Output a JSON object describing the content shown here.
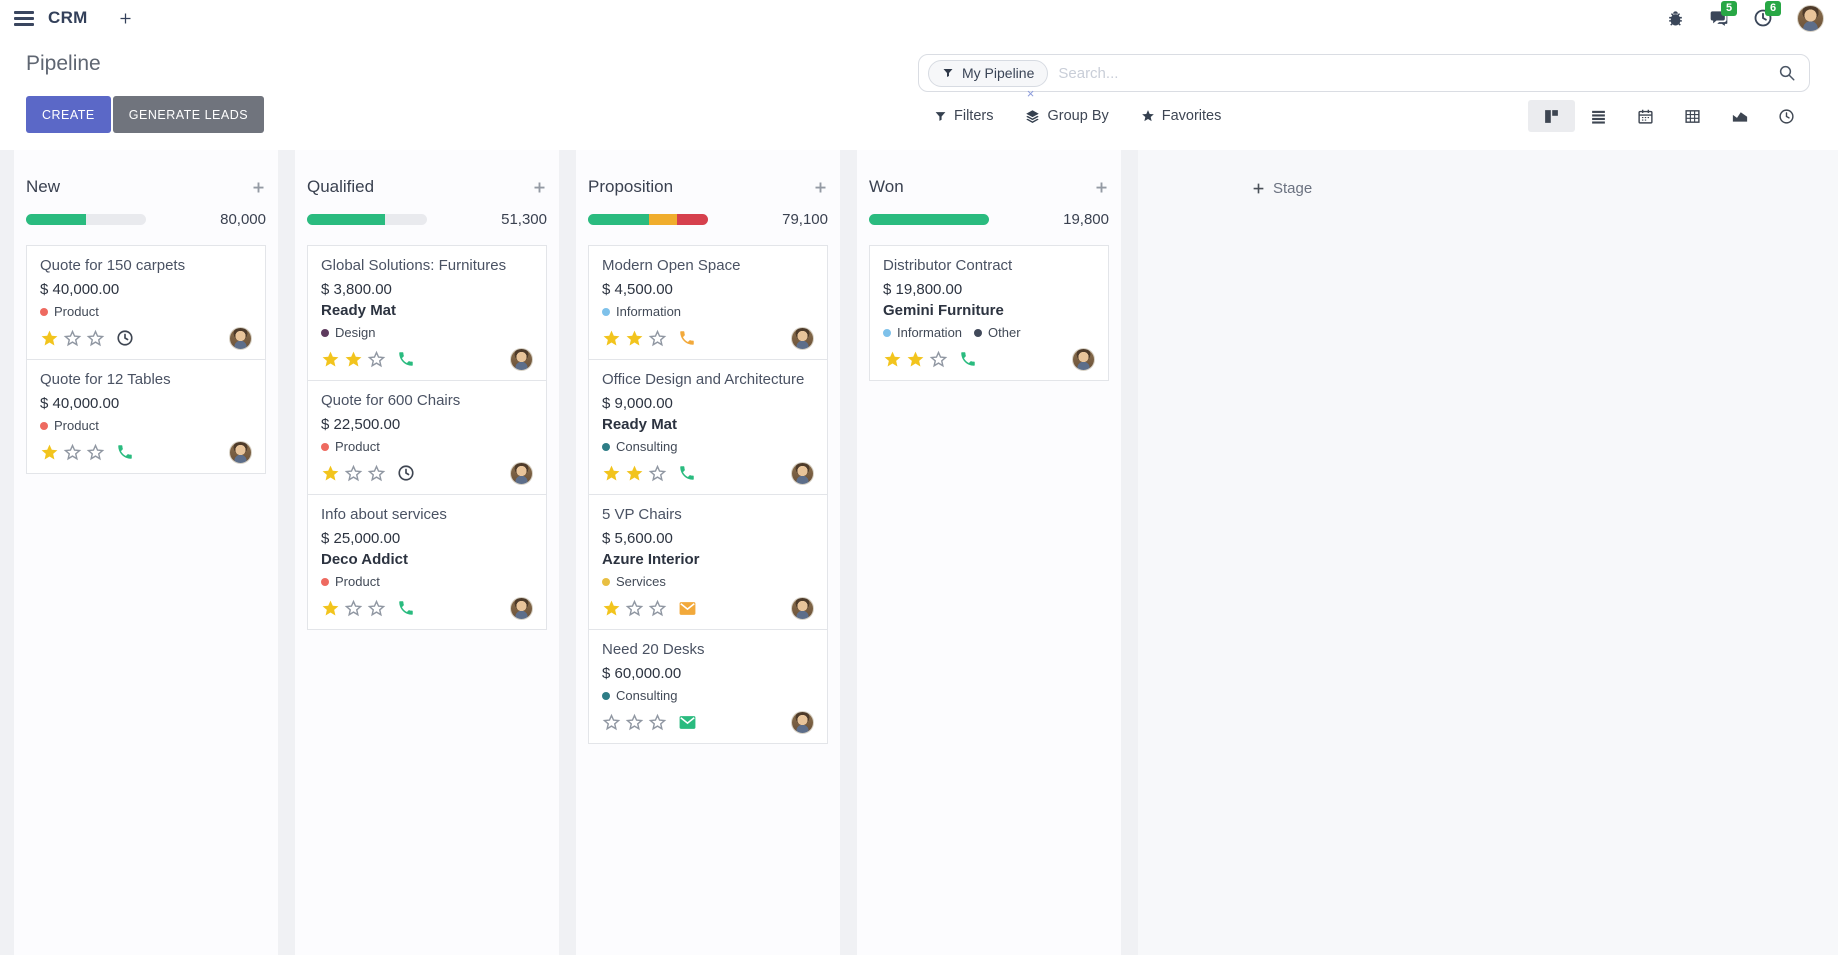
{
  "navbar": {
    "app": "CRM",
    "messages_badge": "5",
    "activities_badge": "6"
  },
  "control_panel": {
    "title": "Pipeline",
    "create": "CREATE",
    "generate_leads": "GENERATE LEADS",
    "search": {
      "facet_label": "My Pipeline",
      "remove": "×",
      "placeholder": "Search..."
    },
    "toolbar": {
      "filters": "Filters",
      "group_by": "Group By",
      "favorites": "Favorites"
    }
  },
  "kanban": {
    "add_stage": "Stage",
    "columns": [
      {
        "name": "New",
        "total": "80,000",
        "progress": [
          {
            "color": "#2abb7f",
            "pct": 50
          }
        ],
        "cards": [
          {
            "title": "Quote for 150 carpets",
            "amount": "$ 40,000.00",
            "tags": [
              {
                "label": "Product",
                "color": "#ee6a60"
              }
            ],
            "stars": 1,
            "activity": {
              "icon": "clock",
              "color": "#3f4652"
            }
          },
          {
            "title": "Quote for 12 Tables",
            "amount": "$ 40,000.00",
            "tags": [
              {
                "label": "Product",
                "color": "#ee6a60"
              }
            ],
            "stars": 1,
            "activity": {
              "icon": "phone",
              "color": "#2abb7f"
            }
          }
        ]
      },
      {
        "name": "Qualified",
        "total": "51,300",
        "progress": [
          {
            "color": "#2abb7f",
            "pct": 65
          }
        ],
        "cards": [
          {
            "title": "Global Solutions: Furnitures",
            "amount": "$ 3,800.00",
            "company": "Ready Mat",
            "tags": [
              {
                "label": "Design",
                "color": "#5e3b5e"
              }
            ],
            "stars": 2,
            "activity": {
              "icon": "phone",
              "color": "#2abb7f"
            }
          },
          {
            "title": "Quote for 600 Chairs",
            "amount": "$ 22,500.00",
            "tags": [
              {
                "label": "Product",
                "color": "#ee6a60"
              }
            ],
            "stars": 1,
            "activity": {
              "icon": "clock",
              "color": "#3f4652"
            }
          },
          {
            "title": "Info about services",
            "amount": "$ 25,000.00",
            "company": "Deco Addict",
            "tags": [
              {
                "label": "Product",
                "color": "#ee6a60"
              }
            ],
            "stars": 1,
            "activity": {
              "icon": "phone",
              "color": "#2abb7f"
            }
          }
        ]
      },
      {
        "name": "Proposition",
        "total": "79,100",
        "progress": [
          {
            "color": "#2abb7f",
            "pct": 51
          },
          {
            "color": "#f0ad2d",
            "pct": 23
          },
          {
            "color": "#d6404d",
            "pct": 26
          }
        ],
        "cards": [
          {
            "title": "Modern Open Space",
            "amount": "$ 4,500.00",
            "tags": [
              {
                "label": "Information",
                "color": "#7ec1ea"
              }
            ],
            "stars": 2,
            "activity": {
              "icon": "phone",
              "color": "#f2a93b"
            }
          },
          {
            "title": "Office Design and Architecture",
            "amount": "$ 9,000.00",
            "company": "Ready Mat",
            "tags": [
              {
                "label": "Consulting",
                "color": "#2e7d86"
              }
            ],
            "stars": 2,
            "activity": {
              "icon": "phone",
              "color": "#2abb7f"
            }
          },
          {
            "title": "5 VP Chairs",
            "amount": "$ 5,600.00",
            "company": "Azure Interior",
            "tags": [
              {
                "label": "Services",
                "color": "#e8bf42"
              }
            ],
            "stars": 1,
            "activity": {
              "icon": "mail",
              "color": "#f2a93b"
            }
          },
          {
            "title": "Need 20 Desks",
            "amount": "$ 60,000.00",
            "tags": [
              {
                "label": "Consulting",
                "color": "#2e7d86"
              }
            ],
            "stars": 0,
            "activity": {
              "icon": "mail",
              "color": "#2abb7f"
            }
          }
        ]
      },
      {
        "name": "Won",
        "total": "19,800",
        "progress": [
          {
            "color": "#2abb7f",
            "pct": 100
          }
        ],
        "cards": [
          {
            "title": "Distributor Contract",
            "amount": "$ 19,800.00",
            "company": "Gemini Furniture",
            "tags": [
              {
                "label": "Information",
                "color": "#7ec1ea"
              },
              {
                "label": "Other",
                "color": "#41495a"
              }
            ],
            "stars": 2,
            "activity": {
              "icon": "phone",
              "color": "#2abb7f"
            }
          }
        ]
      }
    ]
  },
  "colors": {
    "accent": "#5b68c7",
    "generate_button": "#70747d",
    "badge_green": "#28a745",
    "star_filled": "#f2c41d",
    "star_empty": "#9097a2",
    "progress_track": "#e9eaee"
  }
}
